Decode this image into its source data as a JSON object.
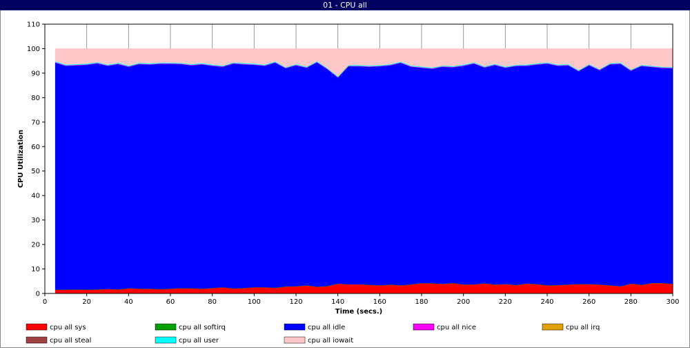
{
  "window_title": "01 - CPU all",
  "chart_data": {
    "type": "stacked-area",
    "xlabel": "Time (secs.)",
    "ylabel": "CPU Utilization",
    "xlim": [
      0,
      300
    ],
    "xticks": [
      0,
      20,
      40,
      60,
      80,
      100,
      120,
      140,
      160,
      180,
      200,
      220,
      240,
      260,
      280,
      300
    ],
    "ylim": [
      0,
      110
    ],
    "yticks": [
      0,
      10,
      20,
      30,
      40,
      50,
      60,
      70,
      80,
      90,
      100,
      110
    ],
    "grid": "x",
    "legend": "bottom",
    "x": [
      5,
      10,
      15,
      20,
      25,
      30,
      35,
      40,
      45,
      50,
      55,
      60,
      65,
      70,
      75,
      80,
      85,
      90,
      95,
      100,
      105,
      110,
      115,
      120,
      125,
      130,
      135,
      140,
      145,
      150,
      155,
      160,
      165,
      170,
      175,
      180,
      185,
      190,
      195,
      200,
      205,
      210,
      215,
      220,
      225,
      230,
      235,
      240,
      245,
      250,
      255,
      260,
      265,
      270,
      275,
      280,
      285,
      290,
      295,
      300
    ],
    "series": [
      {
        "name": "cpu all sys",
        "color": "#ff0000",
        "values": [
          1.5,
          1.5,
          1.6,
          1.5,
          1.6,
          1.8,
          1.6,
          2.1,
          1.9,
          1.9,
          1.7,
          1.9,
          2.1,
          2.1,
          1.9,
          2.2,
          2.5,
          2.0,
          2.2,
          2.5,
          2.5,
          2.3,
          2.8,
          2.9,
          3.3,
          2.7,
          3.0,
          4.0,
          3.7,
          3.7,
          3.5,
          3.3,
          3.6,
          3.3,
          3.7,
          4.2,
          4.1,
          3.9,
          4.2,
          3.6,
          3.7,
          4.1,
          3.6,
          3.8,
          3.4,
          4.0,
          3.8,
          3.3,
          3.4,
          3.6,
          3.8,
          3.8,
          3.6,
          3.3,
          2.9,
          4.0,
          3.5,
          4.2,
          4.2,
          3.9
        ]
      },
      {
        "name": "cpu all softirq",
        "color": "#00a000",
        "values": [
          0.1,
          0.1,
          0.1,
          0.1,
          0.1,
          0.1,
          0.1,
          0.1,
          0.1,
          0.1,
          0.1,
          0.1,
          0.1,
          0.1,
          0.1,
          0.1,
          0.1,
          0.1,
          0.1,
          0.1,
          0.1,
          0.1,
          0.1,
          0.1,
          0.1,
          0.1,
          0.1,
          0.1,
          0.1,
          0.1,
          0.1,
          0.1,
          0.1,
          0.1,
          0.1,
          0.1,
          0.1,
          0.1,
          0.1,
          0.1,
          0.1,
          0.1,
          0.1,
          0.1,
          0.1,
          0.1,
          0.1,
          0.1,
          0.1,
          0.1,
          0.1,
          0.1,
          0.1,
          0.1,
          0.1,
          0.1,
          0.1,
          0.1,
          0.1,
          0.1
        ]
      },
      {
        "name": "cpu all idle",
        "color": "#0000ff",
        "values": [
          92.7,
          91.4,
          91.5,
          91.8,
          92.3,
          91.1,
          92.0,
          90.4,
          91.7,
          91.5,
          92.0,
          91.8,
          91.5,
          91.0,
          91.6,
          90.7,
          90.0,
          91.8,
          91.3,
          90.8,
          90.4,
          91.9,
          89.1,
          90.2,
          88.8,
          91.6,
          88.5,
          84.1,
          89.0,
          89.0,
          89.0,
          89.4,
          89.5,
          90.8,
          88.8,
          87.9,
          87.6,
          88.6,
          88.1,
          89.3,
          90.1,
          88.1,
          89.6,
          88.3,
          89.4,
          88.9,
          89.6,
          90.5,
          89.5,
          89.5,
          86.9,
          89.3,
          87.5,
          90.2,
          90.8,
          86.9,
          89.3,
          88.2,
          87.8,
          88.0
        ]
      },
      {
        "name": "cpu all nice",
        "color": "#ff00ff",
        "values": [
          0.2,
          0.2,
          0.2,
          0.2,
          0.2,
          0.2,
          0.2,
          0.2,
          0.2,
          0.2,
          0.2,
          0.2,
          0.2,
          0.2,
          0.2,
          0.2,
          0.2,
          0.2,
          0.2,
          0.2,
          0.2,
          0.2,
          0.2,
          0.2,
          0.2,
          0.2,
          0.2,
          0.2,
          0.2,
          0.2,
          0.2,
          0.2,
          0.2,
          0.2,
          0.2,
          0.2,
          0.2,
          0.2,
          0.2,
          0.2,
          0.2,
          0.2,
          0.2,
          0.2,
          0.2,
          0.2,
          0.2,
          0.2,
          0.2,
          0.2,
          0.2,
          0.2,
          0.2,
          0.2,
          0.2,
          0.2,
          0.2,
          0.2,
          0.2,
          0.2
        ]
      },
      {
        "name": "cpu all irq",
        "color": "#e0a000",
        "values": [
          0,
          0,
          0,
          0,
          0,
          0,
          0,
          0,
          0,
          0,
          0,
          0,
          0,
          0,
          0,
          0,
          0,
          0,
          0,
          0,
          0,
          0,
          0,
          0,
          0,
          0,
          0,
          0,
          0,
          0,
          0,
          0,
          0,
          0,
          0,
          0,
          0,
          0,
          0,
          0,
          0,
          0,
          0,
          0,
          0,
          0,
          0,
          0,
          0,
          0,
          0,
          0,
          0,
          0,
          0,
          0,
          0,
          0,
          0,
          0
        ]
      },
      {
        "name": "cpu all steal",
        "color": "#a04040",
        "values": [
          0,
          0,
          0,
          0,
          0,
          0,
          0,
          0,
          0,
          0,
          0,
          0,
          0,
          0,
          0,
          0,
          0,
          0,
          0,
          0,
          0,
          0,
          0,
          0,
          0,
          0,
          0,
          0,
          0,
          0,
          0,
          0,
          0,
          0,
          0,
          0,
          0,
          0,
          0,
          0,
          0,
          0,
          0,
          0,
          0,
          0,
          0,
          0,
          0,
          0,
          0,
          0,
          0,
          0,
          0,
          0,
          0,
          0,
          0,
          0
        ]
      },
      {
        "name": "cpu all user",
        "color": "#00ffff",
        "values": [
          0.3,
          0.3,
          0.3,
          0.3,
          0.3,
          0.3,
          0.3,
          0.3,
          0.3,
          0.3,
          0.3,
          0.3,
          0.3,
          0.3,
          0.3,
          0.3,
          0.3,
          0.3,
          0.3,
          0.3,
          0.3,
          0.3,
          0.3,
          0.3,
          0.3,
          0.3,
          0.3,
          0.3,
          0.3,
          0.3,
          0.3,
          0.3,
          0.3,
          0.3,
          0.3,
          0.3,
          0.3,
          0.3,
          0.3,
          0.3,
          0.3,
          0.3,
          0.3,
          0.3,
          0.3,
          0.3,
          0.3,
          0.3,
          0.3,
          0.3,
          0.3,
          0.3,
          0.3,
          0.3,
          0.3,
          0.3,
          0.3,
          0.3,
          0.3,
          0.3
        ]
      },
      {
        "name": "cpu all iowait",
        "color": "#ffc8c8",
        "values": [
          5.2,
          6.5,
          6.3,
          6.1,
          5.5,
          6.5,
          5.8,
          6.9,
          5.8,
          6.0,
          5.7,
          5.7,
          5.8,
          6.3,
          5.9,
          6.5,
          6.9,
          5.6,
          5.9,
          6.1,
          6.5,
          5.2,
          7.5,
          6.3,
          7.3,
          5.1,
          7.9,
          11.3,
          6.7,
          6.7,
          6.9,
          6.7,
          6.3,
          5.3,
          6.9,
          7.3,
          7.7,
          6.9,
          7.1,
          6.5,
          5.6,
          7.2,
          6.2,
          7.3,
          6.6,
          6.5,
          6.0,
          5.6,
          6.5,
          6.3,
          8.7,
          6.3,
          8.3,
          5.9,
          5.7,
          8.5,
          6.6,
          7.0,
          7.4,
          7.5
        ]
      }
    ]
  }
}
